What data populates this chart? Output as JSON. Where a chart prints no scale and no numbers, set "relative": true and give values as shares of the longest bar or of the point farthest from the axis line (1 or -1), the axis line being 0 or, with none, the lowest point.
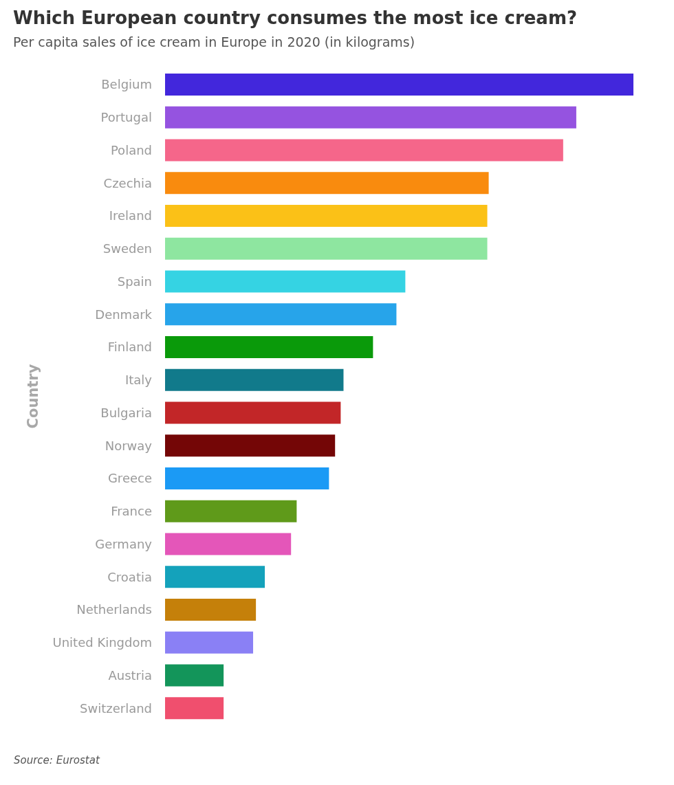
{
  "chart_data": {
    "type": "bar",
    "orientation": "horizontal",
    "relative": true,
    "title": "Which European country consumes the most ice cream?",
    "subtitle": "Per capita sales of ice cream in Europe in 2020 (in kilograms)",
    "ylabel": "Country",
    "annotations": [
      "Source: Eurostat"
    ],
    "categories": [
      "Belgium",
      "Portugal",
      "Poland",
      "Czechia",
      "Ireland",
      "Sweden",
      "Spain",
      "Denmark",
      "Finland",
      "Italy",
      "Bulgaria",
      "Norway",
      "Greece",
      "France",
      "Germany",
      "Croatia",
      "Netherlands",
      "United Kingdom",
      "Austria",
      "Switzerland"
    ],
    "values": [
      1,
      0.878,
      0.85,
      0.691,
      0.688,
      0.688,
      0.513,
      0.494,
      0.444,
      0.381,
      0.375,
      0.363,
      0.35,
      0.281,
      0.269,
      0.213,
      0.194,
      0.188,
      0.125,
      0.125
    ],
    "colors": [
      "#4227dc",
      "#9553e0",
      "#f5668a",
      "#f98b0e",
      "#fbc117",
      "#8ee6a0",
      "#35d3e3",
      "#27a4ea",
      "#0a9a0a",
      "#117a8b",
      "#c22628",
      "#740606",
      "#1b9af5",
      "#5f9a1a",
      "#e456b9",
      "#14a2bb",
      "#c5800a",
      "#8a80f5",
      "#13955a",
      "#f04f6e"
    ]
  }
}
